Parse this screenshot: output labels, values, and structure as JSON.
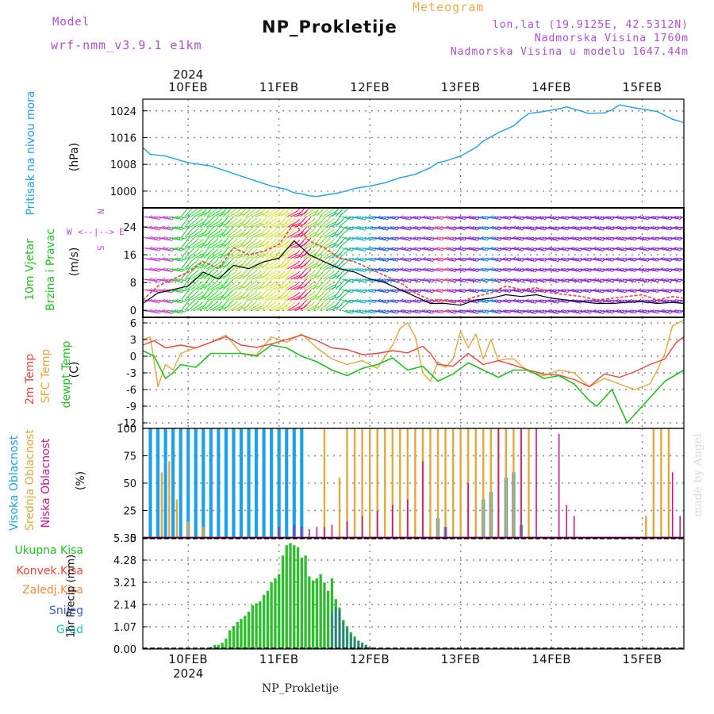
{
  "header": {
    "model_label": "Model",
    "model_name": "wrf-nmm_v3.9.1 e1km",
    "product": "Meteogram",
    "station": "NP_Prokletije",
    "coords": "lon,lat (19.9125E, 42.5312N)",
    "altitude": "Nadmorska Visina 1760m",
    "model_altitude": "Nadmorska Visina u modelu 1647.44m"
  },
  "footer": {
    "station": "NP_Prokletije",
    "credit": "made by Angel"
  },
  "wind_compass": {
    "n": "N",
    "s": "S",
    "e": "E",
    "w": "W"
  },
  "legends": {
    "pressure": [
      "Pritisak na nivou mora",
      "(hPa)"
    ],
    "wind": [
      "10m Vjetar",
      "Brzina i Pravac",
      "(m/s)"
    ],
    "temp": [
      "2m Temp",
      "SFC Temp",
      "dewpt Temp",
      "(C)"
    ],
    "cloud": [
      "Visoka Oblacnost",
      "Srednja Oblacnost",
      "Niska Oblacnost",
      "(%)"
    ],
    "precip": [
      "Ukupna Kisa",
      "Konvek.Kisa",
      "Zaledj.Kisa",
      "Snijeg",
      "Grad",
      "1hr Precip (mm)"
    ]
  },
  "colors": {
    "pressure": "#1ea1e6",
    "wind_speed": "#000000",
    "wind_gust": "#e8453c",
    "temp2m": "#e8453c",
    "tsfc": "#e2a83c",
    "dewpt": "#22c022",
    "cloud_high": "#1ea1e6",
    "cloud_mid": "#e2a83c",
    "cloud_low": "#c0188e",
    "precip_total": "#2cc02c",
    "snow": "#3a5fcf",
    "grid": "#888888"
  },
  "chart_data": [
    {
      "id": "pressure",
      "type": "line",
      "x_unit": "hours from 2024-02-09 12:00",
      "xlim": [
        0,
        143
      ],
      "days": [
        "10FEB",
        "11FEB",
        "12FEB",
        "13FEB",
        "14FEB",
        "15FEB"
      ],
      "year": "2024",
      "ylim": [
        995,
        1027.5
      ],
      "yticks": [
        1000,
        1008,
        1016,
        1024
      ],
      "series": [
        {
          "x": [
            0,
            2,
            6,
            9,
            12,
            15,
            18,
            22,
            26,
            30,
            34,
            38,
            40,
            42,
            44,
            46,
            48,
            52,
            56,
            60,
            64,
            68,
            72,
            76,
            78,
            80,
            84,
            88,
            90,
            94,
            98,
            100,
            102,
            106,
            110,
            112,
            114,
            118,
            122,
            124,
            126,
            130,
            136,
            140,
            143
          ],
          "y": [
            1013,
            1011,
            1010.5,
            1009.5,
            1008.5,
            1008,
            1007.5,
            1006,
            1004.5,
            1003,
            1001.5,
            1000.5,
            999.5,
            999.2,
            998.6,
            998.4,
            998.8,
            999.5,
            1000.8,
            1001.5,
            1002.5,
            1004,
            1005,
            1007,
            1008.5,
            1009,
            1010.5,
            1013,
            1015,
            1017.5,
            1019.5,
            1021.5,
            1023.2,
            1023.8,
            1024.6,
            1025.2,
            1024.5,
            1023.2,
            1023.4,
            1024.3,
            1025.8,
            1024.9,
            1023.8,
            1021.5,
            1020.5
          ]
        }
      ]
    },
    {
      "id": "wind",
      "type": "line",
      "xlim": [
        0,
        143
      ],
      "ylim": [
        -2,
        29.5
      ],
      "yticks": [
        0,
        8,
        16,
        24
      ],
      "series": [
        {
          "name": "speed",
          "x": [
            0,
            4,
            8,
            12,
            16,
            20,
            24,
            28,
            32,
            36,
            40,
            44,
            48,
            52,
            56,
            60,
            64,
            68,
            72,
            76,
            80,
            84,
            88,
            92,
            96,
            100,
            104,
            108,
            112,
            116,
            120,
            124,
            128,
            132,
            136,
            140,
            143
          ],
          "y": [
            2,
            5,
            6,
            7,
            11,
            9,
            13,
            12,
            14,
            15,
            20,
            16,
            14,
            12,
            11,
            9,
            8,
            6,
            4,
            2,
            2,
            1.5,
            3,
            3.5,
            4.5,
            4,
            4.5,
            3.5,
            3,
            2.5,
            2,
            2,
            2.3,
            2.5,
            2,
            2.3,
            2
          ]
        },
        {
          "name": "gust",
          "x": [
            0,
            4,
            8,
            12,
            16,
            20,
            24,
            28,
            32,
            36,
            40,
            44,
            48,
            52,
            56,
            60,
            64,
            68,
            72,
            76,
            80,
            84,
            88,
            92,
            96,
            100,
            104,
            108,
            112,
            116,
            120,
            124,
            128,
            132,
            136,
            140,
            143
          ],
          "y": [
            3,
            7,
            9,
            11,
            14,
            12,
            18,
            16,
            17,
            19,
            25,
            20,
            18,
            15,
            14,
            12,
            10,
            8,
            5,
            3,
            3,
            2.5,
            4,
            5,
            7,
            6,
            6.5,
            5,
            4.5,
            4,
            3,
            3.5,
            4,
            4.5,
            3,
            4,
            3.5
          ]
        }
      ],
      "barb_rows": [
        0,
        3,
        6,
        9,
        12,
        15,
        18,
        21,
        24,
        27
      ]
    },
    {
      "id": "temp",
      "type": "line",
      "xlim": [
        0,
        143
      ],
      "ylim": [
        -13,
        7
      ],
      "yticks": [
        6,
        3,
        0,
        -3,
        -6,
        -9,
        -12
      ],
      "series": [
        {
          "name": "2m Temp",
          "x": [
            0,
            3,
            6,
            10,
            14,
            18,
            22,
            26,
            30,
            34,
            38,
            42,
            46,
            50,
            54,
            58,
            62,
            66,
            70,
            74,
            76,
            78,
            82,
            86,
            90,
            94,
            98,
            102,
            106,
            110,
            114,
            118,
            122,
            126,
            130,
            134,
            138,
            141,
            143
          ],
          "y": [
            2,
            2.8,
            1.5,
            2,
            1.5,
            2.5,
            3.5,
            2,
            1.6,
            2.2,
            3,
            3.8,
            2.8,
            1.5,
            1.2,
            0.3,
            0.5,
            1,
            0.6,
            1.8,
            0.5,
            -1.5,
            -1.8,
            0.5,
            -1.5,
            -0.8,
            -1.6,
            -2.5,
            -3.2,
            -3.4,
            -4.2,
            -5.5,
            -3.2,
            -3.8,
            -2.8,
            -1.5,
            -0.5,
            2.5,
            3.5
          ]
        },
        {
          "name": "SFC Temp",
          "x": [
            0,
            2,
            4,
            6,
            8,
            10,
            14,
            18,
            22,
            26,
            30,
            34,
            38,
            42,
            46,
            50,
            54,
            58,
            62,
            66,
            68,
            70,
            72,
            74,
            76,
            78,
            80,
            82,
            84,
            86,
            88,
            90,
            92,
            94,
            96,
            98,
            102,
            106,
            110,
            114,
            118,
            122,
            126,
            130,
            134,
            136,
            138,
            140,
            143
          ],
          "y": [
            3,
            3.5,
            -5.5,
            -1.5,
            -2.5,
            0.5,
            1.5,
            2.5,
            3.8,
            0.5,
            0.2,
            3.5,
            2.5,
            4,
            1.5,
            -0.5,
            -1.5,
            -0.8,
            -2.2,
            2,
            5,
            6,
            3.5,
            -3,
            -4.5,
            -1,
            -2,
            -0.5,
            4.5,
            1.5,
            4,
            -0.5,
            3,
            -0.8,
            -0.5,
            -0.5,
            -2.8,
            -3.5,
            -2.5,
            -3,
            -5.5,
            -4,
            -5,
            -6,
            -5,
            -2.5,
            0.5,
            5.5,
            6.5
          ]
        },
        {
          "name": "dewpt Temp",
          "x": [
            0,
            3,
            6,
            8,
            10,
            14,
            18,
            22,
            26,
            30,
            34,
            38,
            42,
            46,
            50,
            54,
            58,
            62,
            66,
            70,
            74,
            78,
            82,
            86,
            90,
            94,
            98,
            102,
            106,
            110,
            114,
            116,
            118,
            120,
            124,
            126,
            128,
            130,
            134,
            138,
            143
          ],
          "y": [
            1,
            0,
            -4,
            -3,
            -1.5,
            -2,
            0.5,
            0.5,
            0.5,
            0,
            2,
            1.5,
            0,
            -1,
            -2.5,
            -3.5,
            -2.2,
            -1.5,
            -0.3,
            -2.5,
            -1.8,
            -4.5,
            -3.2,
            -1.2,
            -2.5,
            -3.8,
            -2.5,
            -2.5,
            -4,
            -3.5,
            -5,
            -6.5,
            -8,
            -9,
            -6,
            -9,
            -12,
            -10.5,
            -7.5,
            -4.5,
            -2.5
          ]
        }
      ]
    },
    {
      "id": "cloud",
      "type": "bar",
      "xlim": [
        0,
        143
      ],
      "ylim": [
        0,
        100
      ],
      "yticks": [
        0,
        25,
        50,
        75,
        100
      ],
      "series": [
        {
          "name": "Visoka Oblacnost",
          "x": [
            2,
            4,
            6,
            8,
            10,
            12,
            14,
            16,
            18,
            20,
            22,
            24,
            26,
            28,
            30,
            32,
            34,
            36,
            38,
            40,
            42,
            78,
            80,
            90,
            92,
            96,
            98,
            100
          ],
          "y": [
            100,
            100,
            100,
            100,
            100,
            100,
            100,
            100,
            100,
            100,
            100,
            100,
            100,
            100,
            100,
            100,
            100,
            100,
            100,
            100,
            100,
            18,
            10,
            35,
            42,
            55,
            60,
            12
          ]
        },
        {
          "name": "Srednja Oblacnost",
          "x": [
            5,
            7,
            9,
            12,
            16,
            48,
            52,
            54,
            56,
            58,
            60,
            62,
            64,
            66,
            68,
            70,
            72,
            74,
            76,
            78,
            80,
            82,
            84,
            86,
            88,
            90,
            92,
            94,
            96,
            98,
            100,
            102,
            133,
            135,
            137,
            139
          ],
          "y": [
            60,
            70,
            35,
            15,
            10,
            100,
            55,
            100,
            100,
            100,
            100,
            100,
            100,
            100,
            100,
            100,
            100,
            100,
            100,
            100,
            100,
            100,
            100,
            100,
            100,
            100,
            100,
            100,
            100,
            100,
            100,
            100,
            20,
            100,
            100,
            100
          ]
        },
        {
          "name": "Niska Oblacnost",
          "x": [
            36,
            40,
            42,
            44,
            46,
            48,
            50,
            54,
            58,
            62,
            66,
            70,
            74,
            80,
            86,
            94,
            100,
            104,
            110,
            112,
            114,
            140,
            142
          ],
          "y": [
            10,
            12,
            10,
            8,
            10,
            10,
            12,
            15,
            20,
            25,
            30,
            35,
            70,
            10,
            50,
            100,
            100,
            100,
            95,
            30,
            20,
            60,
            20
          ]
        }
      ]
    },
    {
      "id": "precip",
      "type": "bar",
      "xlim": [
        0,
        143
      ],
      "ylim": [
        0,
        5.35
      ],
      "yticks": [
        0,
        1.07,
        2.14,
        3.21,
        4.28,
        5.35
      ],
      "x_labels": [
        "10FEB",
        "11FEB",
        "12FEB",
        "13FEB",
        "14FEB",
        "15FEB"
      ],
      "year": "2024",
      "series": [
        {
          "name": "Ukupna Kisa",
          "x": [
            18,
            19,
            20,
            21,
            22,
            23,
            24,
            25,
            26,
            27,
            28,
            29,
            30,
            31,
            32,
            33,
            34,
            35,
            36,
            37,
            38,
            39,
            40,
            41,
            42,
            43,
            44,
            45,
            46,
            47,
            48,
            49,
            50,
            51,
            52,
            53,
            54,
            55,
            56,
            57,
            58,
            59,
            60,
            61,
            62
          ],
          "y": [
            0.1,
            0.2,
            0.2,
            0.3,
            0.5,
            0.9,
            1.1,
            1.3,
            1.45,
            1.6,
            1.8,
            2.1,
            2.2,
            2.3,
            2.6,
            2.8,
            3.2,
            3.4,
            3.6,
            4.5,
            5.0,
            5.1,
            5.0,
            4.9,
            4.4,
            4.5,
            3.5,
            3.3,
            3.4,
            3.6,
            3.2,
            2.8,
            3.4,
            2.4,
            2.0,
            1.4,
            1.1,
            0.8,
            0.6,
            0.4,
            0.3,
            0.2,
            0.1,
            0.05,
            0.03
          ]
        },
        {
          "name": "Snijeg",
          "x": [
            50,
            51,
            52,
            53,
            54,
            55,
            56,
            57,
            58,
            59,
            60,
            61,
            62
          ],
          "y": [
            1.8,
            2.0,
            1.9,
            1.3,
            1.0,
            0.7,
            0.5,
            0.4,
            0.3,
            0.2,
            0.1,
            0.05,
            0.03
          ]
        }
      ]
    }
  ]
}
